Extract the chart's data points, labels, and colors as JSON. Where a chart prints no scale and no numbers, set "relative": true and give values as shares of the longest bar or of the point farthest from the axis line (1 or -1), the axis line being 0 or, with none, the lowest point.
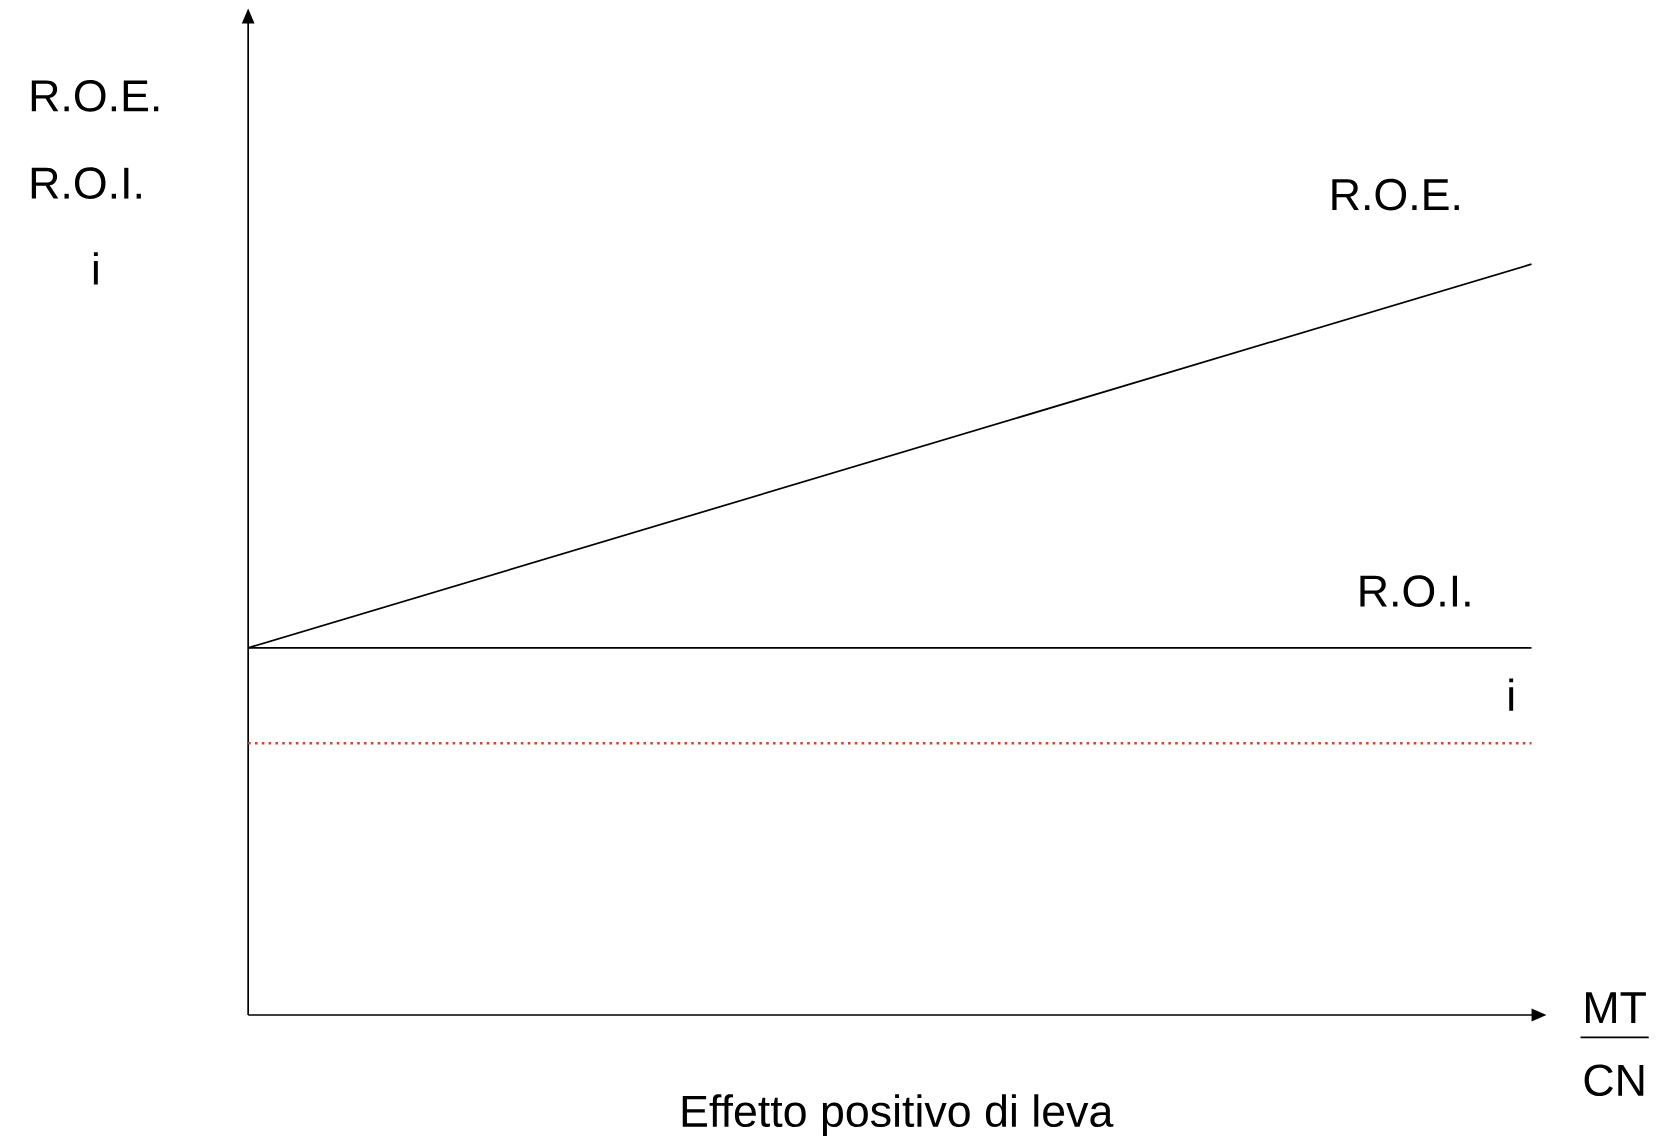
{
  "chart_data": {
    "type": "line",
    "relative": true,
    "xlabel": "Effetto positivo di leva",
    "categories": [
      null,
      null
    ],
    "series": [
      {
        "name": "R.O.E.",
        "color": "#000000",
        "values": [
          0.489,
          1.0
        ],
        "line_style": "solid"
      },
      {
        "name": "R.O.I.",
        "color": "#000000",
        "values": [
          0.489,
          0.489
        ],
        "line_style": "solid"
      },
      {
        "name": "i",
        "color": "#e0401e",
        "values": [
          0.362,
          0.362
        ],
        "line_style": "dotted"
      }
    ],
    "annotations": [
      "R.O.E.",
      "R.O.I.",
      "i",
      "MT",
      "CN"
    ],
    "marker": "none"
  }
}
